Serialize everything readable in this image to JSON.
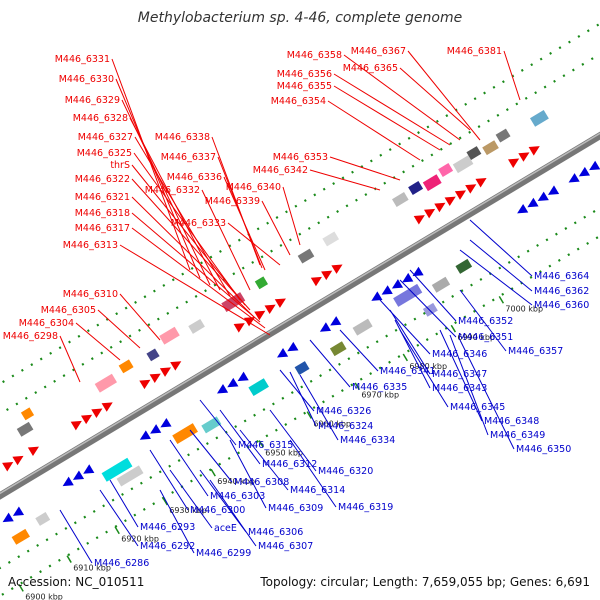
{
  "title": "Methylobacterium sp. 4-46, complete genome",
  "footer": {
    "accession": "Accession: NC_010511",
    "summary": "Topology: circular; Length: 7,659,055 bp; Genes: 6,691"
  },
  "colors": {
    "forward_label": "#ee0000",
    "reverse_label": "#0000cc",
    "backbone": "#888888"
  },
  "scale_ticks": [
    "6900 kbp",
    "6910 kbp",
    "6920 kbp",
    "6930 kbp",
    "6940 kbp",
    "6950 kbp",
    "6960 kbp",
    "6970 kbp",
    "6980 kbp",
    "6990 kbp",
    "7000 kbp"
  ],
  "forward_labels": [
    "M446_6331",
    "M446_6330",
    "M446_6329",
    "M446_6328",
    "M446_6327",
    "M446_6325",
    "thrS",
    "M446_6322",
    "M446_6321",
    "M446_6318",
    "M446_6317",
    "M446_6313",
    "M446_6310",
    "M446_6305",
    "M446_6304",
    "M446_6298",
    "M446_6338",
    "M446_6337",
    "M446_6336",
    "M446_6332",
    "M446_6340",
    "M446_6339",
    "M446_6333",
    "M446_6353",
    "M446_6342",
    "M446_6358",
    "M446_6356",
    "M446_6355",
    "M446_6354",
    "M446_6367",
    "M446_6365",
    "M446_6381"
  ],
  "reverse_labels": [
    "M446_6364",
    "M446_6362",
    "M446_6360",
    "M446_6352",
    "M446_6351",
    "M446_6357",
    "M446_6346",
    "M446_6347",
    "M446_6341",
    "M446_6343",
    "M446_6345",
    "M446_6335",
    "M446_6348",
    "M446_6349",
    "M446_6350",
    "M446_6326",
    "M446_6324",
    "M446_6334",
    "M446_6315",
    "M446_6312",
    "M446_6320",
    "M446_6308",
    "M446_6314",
    "M446_6303",
    "M446_6309",
    "M446_6319",
    "M446_6300",
    "M446_6306",
    "M446_6293",
    "aceE",
    "M446_6307",
    "M446_6292",
    "M446_6299",
    "M446_6286"
  ]
}
